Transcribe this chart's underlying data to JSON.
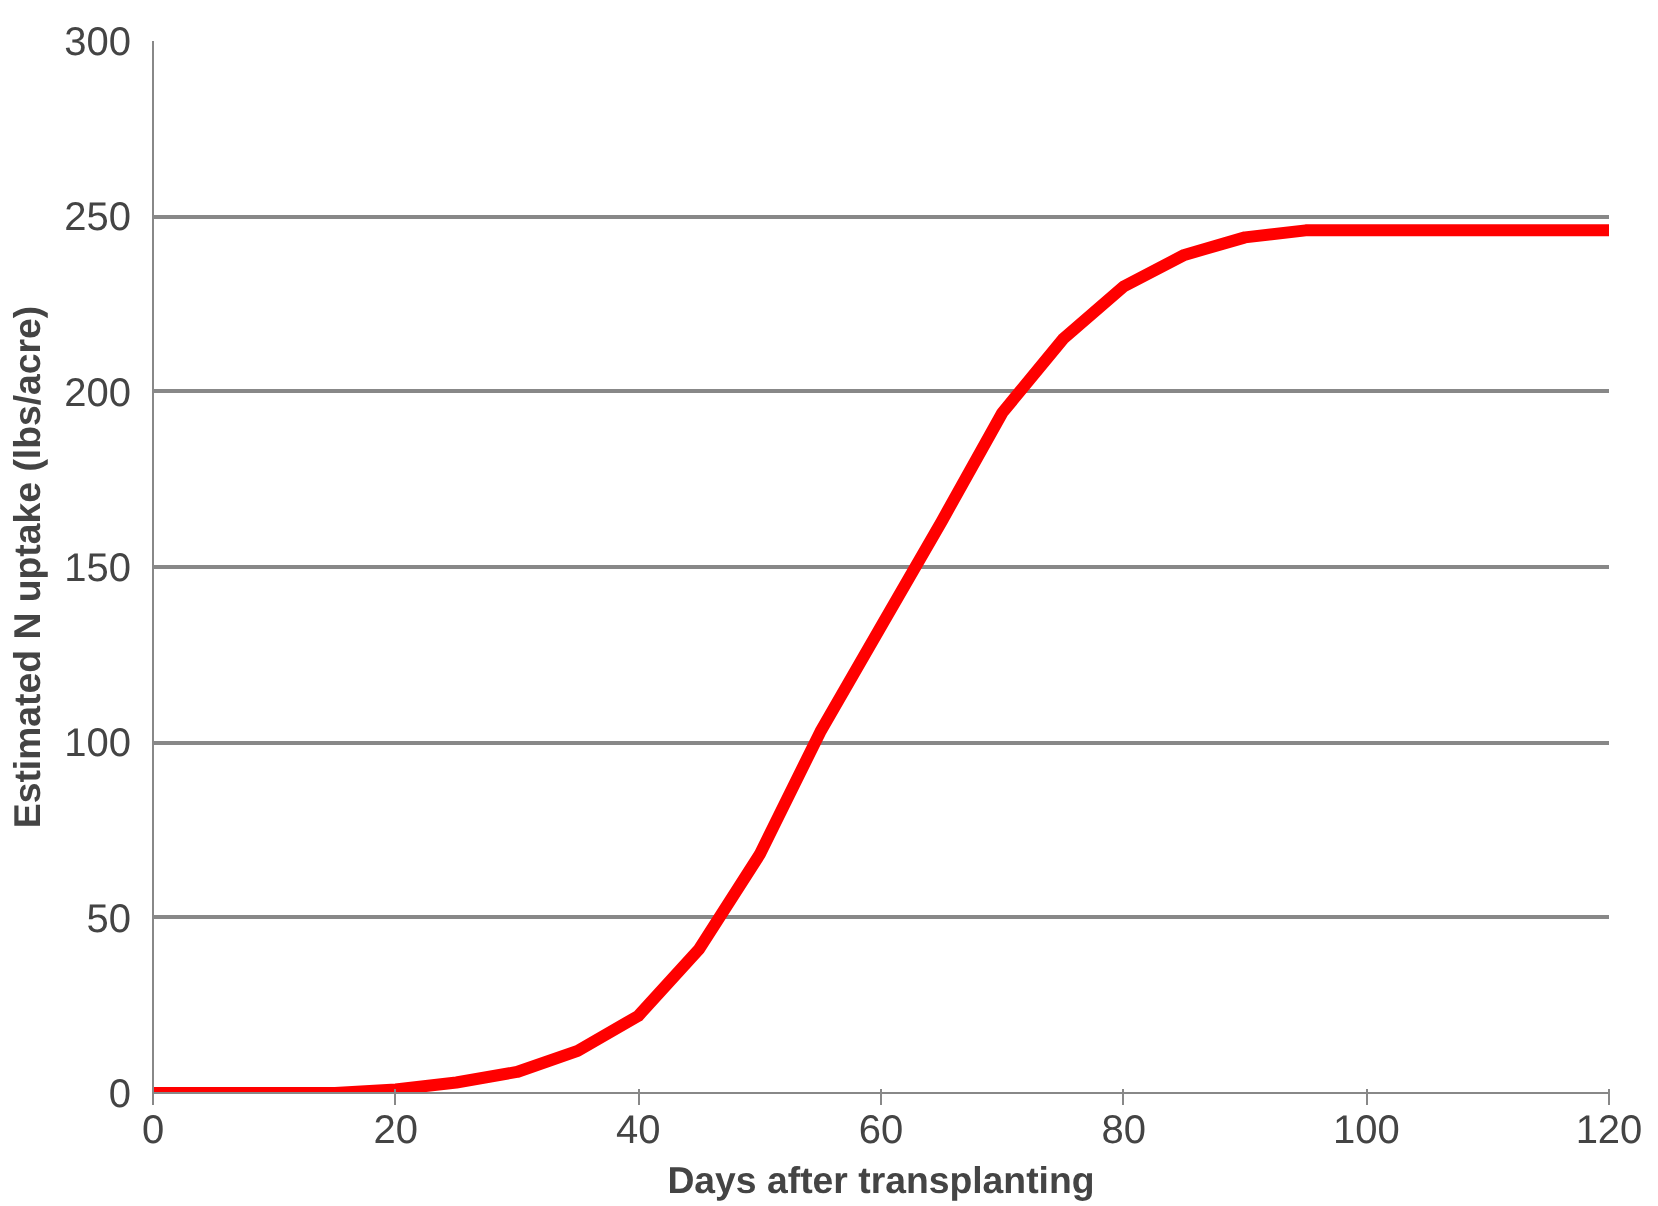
{
  "chart_data": {
    "type": "line",
    "xlabel": "Days after transplanting",
    "ylabel": "Estimated N uptake (lbs/acre)",
    "x": [
      0,
      5,
      10,
      15,
      20,
      25,
      30,
      35,
      40,
      45,
      50,
      55,
      60,
      65,
      70,
      75,
      80,
      85,
      90,
      95,
      100,
      105,
      110,
      115,
      120
    ],
    "series": [
      {
        "color": "#ff0000",
        "values": [
          0,
          0,
          0,
          0,
          1,
          3,
          6,
          12,
          22,
          41,
          68,
          103,
          133,
          163,
          194,
          215,
          230,
          239,
          244,
          246,
          246,
          246,
          246,
          246,
          246
        ]
      }
    ],
    "xlim": [
      0,
      120
    ],
    "ylim": [
      0,
      300
    ],
    "xticks": [
      0,
      20,
      40,
      60,
      80,
      100,
      120
    ],
    "yticks": [
      0,
      50,
      100,
      150,
      200,
      250,
      300
    ],
    "grid": "y",
    "marker": "none",
    "line_style": "solid"
  }
}
